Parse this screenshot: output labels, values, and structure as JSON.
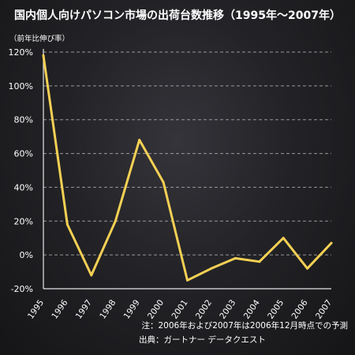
{
  "chart_data": {
    "type": "line",
    "title": "国内個人向けパソコン市場の出荷台数推移（1995年〜2007年）",
    "ylabel": "（前年比伸び率）",
    "x": [
      "1995",
      "1996",
      "1997",
      "1998",
      "1999",
      "2000",
      "2001",
      "2002",
      "2003",
      "2004",
      "2005",
      "2006",
      "2007"
    ],
    "series": [
      {
        "values": [
          118,
          18,
          -12,
          20,
          68,
          43,
          -15,
          -8,
          -2,
          -4,
          10,
          -8,
          7
        ]
      }
    ],
    "yticks": [
      "120%",
      "100%",
      "80%",
      "60%",
      "40%",
      "20%",
      "0%",
      "-20%"
    ],
    "ylim": [
      -20,
      120
    ],
    "grid": true,
    "line_color": "#f5d054"
  },
  "notes": {
    "note": "注：2006年および2007年は2006年12月時点での予測",
    "source": "出典：ガートナー データクエスト"
  }
}
